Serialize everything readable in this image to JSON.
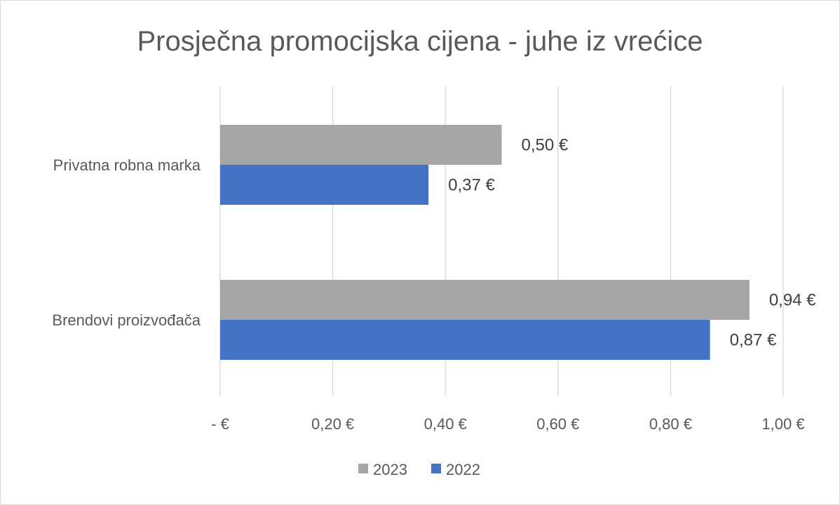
{
  "chart_data": {
    "type": "bar",
    "orientation": "horizontal",
    "title": "Prosječna promocijska cijena - juhe iz vrećice",
    "categories": [
      "Privatna robna marka",
      "Brendovi proizvođača"
    ],
    "series": [
      {
        "name": "2023",
        "color": "#a5a5a5",
        "values": [
          0.5,
          0.94
        ],
        "labels": [
          "0,50 €",
          "0,94 €"
        ]
      },
      {
        "name": "2022",
        "color": "#4472c4",
        "values": [
          0.37,
          0.87
        ],
        "labels": [
          "0,37 €",
          "0,87 €"
        ]
      }
    ],
    "xlim": [
      0,
      1.0
    ],
    "xticks": [
      0,
      0.2,
      0.4,
      0.6,
      0.8,
      1.0
    ],
    "xtick_labels": [
      "-  €",
      "0,20 €",
      "0,40 €",
      "0,60 €",
      "0,80 €",
      "1,00 €"
    ],
    "grid": "vertical",
    "legend": "bottom"
  }
}
